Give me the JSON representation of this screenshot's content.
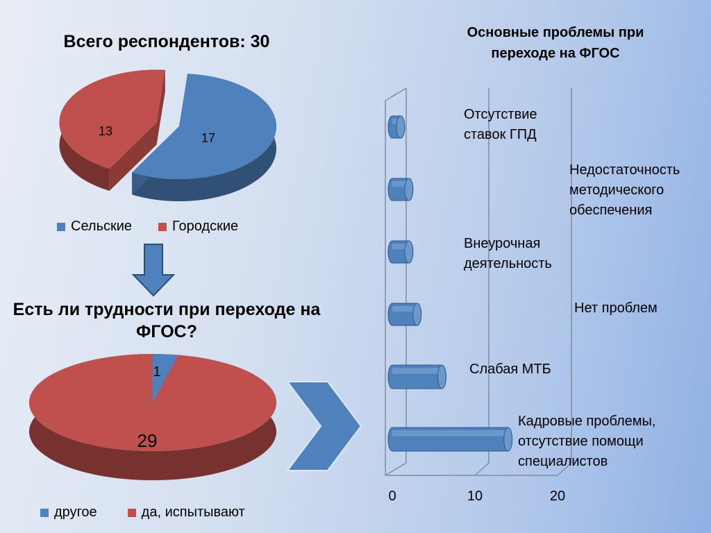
{
  "chart_data": [
    {
      "type": "pie",
      "title": "Всего респондентов: 30",
      "slices": [
        {
          "label": "Сельские",
          "value": 17,
          "color": "#4f81bd"
        },
        {
          "label": "Городские",
          "value": 13,
          "color": "#c0504d"
        }
      ],
      "legend": "bottom"
    },
    {
      "type": "pie",
      "title": "Есть ли трудности при переходе на ФГОС?",
      "slices": [
        {
          "label": "другое",
          "value": 1,
          "color": "#4f81bd"
        },
        {
          "label": "да, испытывают",
          "value": 29,
          "color": "#c0504d"
        }
      ],
      "legend": "bottom"
    },
    {
      "type": "bar",
      "orientation": "horizontal",
      "title": "Основные проблемы при переходе на ФГОС",
      "categories": [
        "Отсутствие\nставок ГПД",
        "Недостаточность\nметодического\nобеспечения",
        "Внеурочная\nдеятельность",
        "Нет проблем",
        "Слабая МТБ",
        "Кадровые проблемы,\nотсутствие помощи\nспециалистов"
      ],
      "values": [
        1,
        2,
        2,
        3,
        6,
        14
      ],
      "xlim": [
        0,
        20
      ],
      "xticks": [
        "0",
        "10",
        "20"
      ],
      "color": "#4f81bd",
      "grid": true
    }
  ]
}
